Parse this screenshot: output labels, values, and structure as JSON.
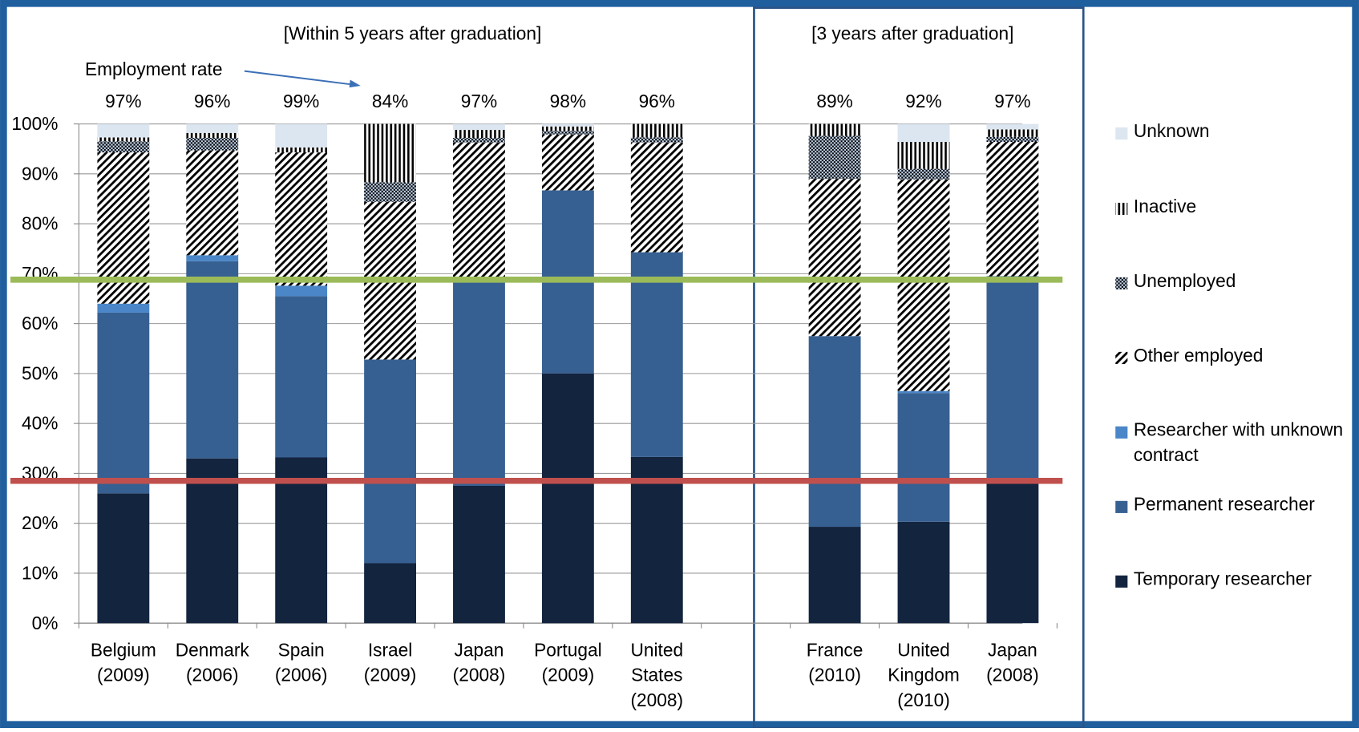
{
  "chart_data": {
    "type": "stacked_bar",
    "group_titles": [
      "[Within 5 years after graduation]",
      "[3 years after graduation]"
    ],
    "annotation": "Employment rate",
    "categories": [
      "Belgium (2009)",
      "Denmark (2006)",
      "Spain (2006)",
      "Israel (2009)",
      "Japan (2008)",
      "Portugal (2009)",
      "United States (2008)",
      null,
      "France (2010)",
      "United Kingdom (2010)",
      "Japan (2008)"
    ],
    "employment_rate": {
      "values": [
        97,
        96,
        99,
        84,
        97,
        98,
        96,
        null,
        89,
        92,
        97
      ],
      "value_labels": [
        "97%",
        "96%",
        "99%",
        "84%",
        "97%",
        "98%",
        "96%",
        null,
        "89%",
        "92%",
        "97%"
      ]
    },
    "series": [
      {
        "name": "Temporary researcher",
        "color": "#13243f",
        "pattern": "solid",
        "values": [
          26,
          33,
          33.2,
          12,
          27.5,
          50,
          33.3,
          null,
          19.3,
          20.3,
          28
        ]
      },
      {
        "name": "Permanent researcher",
        "color": "#376092",
        "pattern": "solid",
        "values": [
          36.2,
          39.5,
          32.3,
          40.8,
          41.8,
          36.7,
          41,
          null,
          38.2,
          25.8,
          41.5
        ]
      },
      {
        "name": "Researcher with unknown contract",
        "color": "#4a86c8",
        "pattern": "solid",
        "values": [
          1.8,
          1.2,
          2.1,
          0,
          0,
          0,
          0,
          null,
          0,
          0.4,
          0
        ]
      },
      {
        "name": "Other employed",
        "color": "#3a5a8a",
        "pattern": "diagonal",
        "values": [
          30.3,
          21,
          26.7,
          31.6,
          27,
          11.2,
          22,
          null,
          31.5,
          42.4,
          26.9
        ]
      },
      {
        "name": "Unemployed",
        "color": "#6f9fd8",
        "pattern": "dots",
        "values": [
          2.2,
          2.5,
          0,
          3.9,
          0.9,
          0.7,
          1,
          null,
          8.6,
          2.1,
          1
        ]
      },
      {
        "name": "Inactive",
        "color": "#376092",
        "pattern": "vertical",
        "values": [
          0.8,
          1,
          1,
          11.7,
          1.6,
          0.9,
          2.7,
          null,
          2.4,
          5.4,
          1.5
        ]
      },
      {
        "name": "Unknown",
        "color": "#dce6f1",
        "pattern": "solid",
        "values": [
          2.7,
          1.8,
          4.7,
          0,
          1.2,
          0.5,
          0,
          null,
          0,
          3.6,
          1.1
        ]
      }
    ],
    "reference_lines": [
      {
        "value": 68.8,
        "color": "#9bbb59"
      },
      {
        "value": 28.5,
        "color": "#c0504d"
      }
    ],
    "ylim": [
      0,
      100
    ],
    "yticks": [
      {
        "value": 0,
        "label": "0%"
      },
      {
        "value": 10,
        "label": "10%"
      },
      {
        "value": 20,
        "label": "20%"
      },
      {
        "value": 30,
        "label": "30%"
      },
      {
        "value": 40,
        "label": "40%"
      },
      {
        "value": 50,
        "label": "50%"
      },
      {
        "value": 60,
        "label": "60%"
      },
      {
        "value": 70,
        "label": "70%"
      },
      {
        "value": 80,
        "label": "80%"
      },
      {
        "value": 90,
        "label": "90%"
      },
      {
        "value": 100,
        "label": "100%"
      }
    ],
    "grid": true
  }
}
